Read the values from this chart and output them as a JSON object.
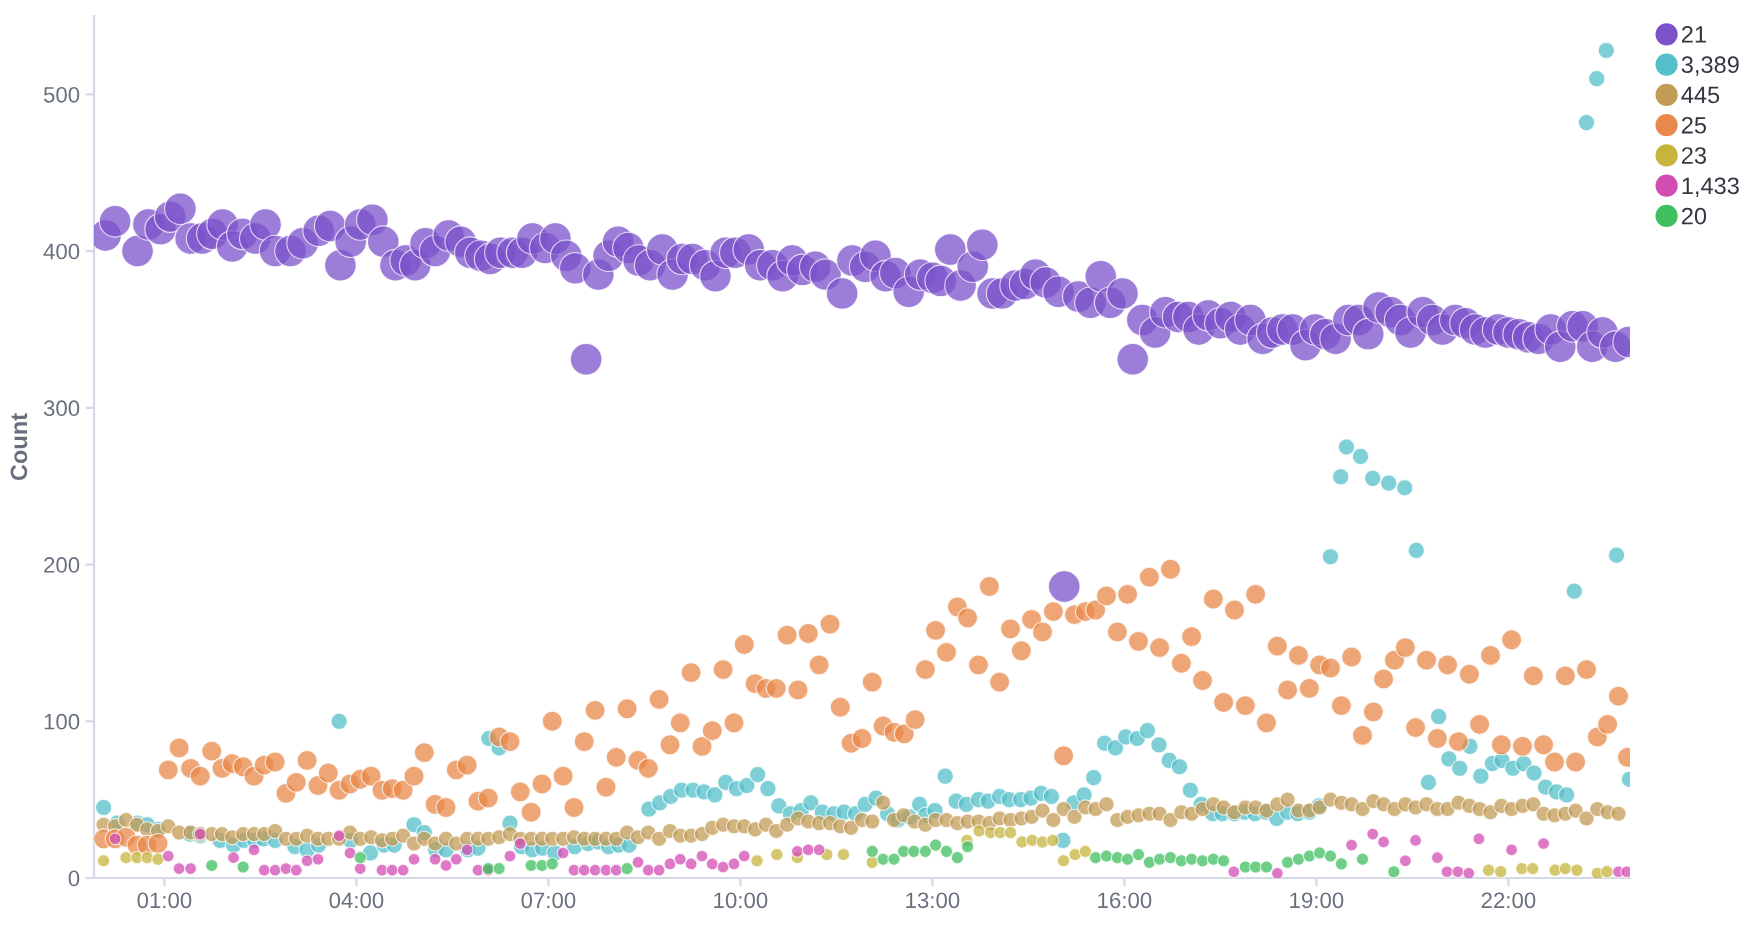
{
  "chart_data": {
    "type": "scatter",
    "ylabel": "Count",
    "marker": "circle",
    "grid": false,
    "legend": "right",
    "xlim": [
      -0.1,
      23.9
    ],
    "ylim": [
      0,
      550
    ],
    "xticks": [
      {
        "value": 1,
        "label": "01:00"
      },
      {
        "value": 4,
        "label": "04:00"
      },
      {
        "value": 7,
        "label": "07:00"
      },
      {
        "value": 10,
        "label": "10:00"
      },
      {
        "value": 13,
        "label": "13:00"
      },
      {
        "value": 16,
        "label": "16:00"
      },
      {
        "value": 19,
        "label": "19:00"
      },
      {
        "value": 22,
        "label": "22:00"
      }
    ],
    "yticks": [
      0,
      100,
      200,
      300,
      400,
      500
    ],
    "series": [
      {
        "name": "21",
        "color": "#7b52c9",
        "x": [
          0.08,
          0.23,
          0.58,
          0.75,
          0.94,
          1.09,
          1.25,
          1.41,
          1.59,
          1.75,
          1.91,
          2.06,
          2.22,
          2.42,
          2.58,
          2.73,
          2.97,
          3.16,
          3.41,
          3.59,
          3.75,
          3.91,
          4.06,
          4.25,
          4.42,
          4.61,
          4.77,
          4.92,
          5.08,
          5.23,
          5.44,
          5.63,
          5.78,
          5.94,
          6.09,
          6.25,
          6.44,
          6.59,
          6.75,
          6.95,
          7.11,
          7.28,
          7.42,
          7.59,
          7.78,
          7.94,
          8.09,
          8.25,
          8.41,
          8.59,
          8.78,
          8.94,
          9.09,
          9.25,
          9.45,
          9.61,
          9.77,
          9.92,
          10.13,
          10.31,
          10.5,
          10.66,
          10.81,
          10.97,
          11.17,
          11.33,
          11.59,
          11.75,
          11.95,
          12.11,
          12.27,
          12.42,
          12.63,
          12.81,
          13.0,
          13.13,
          13.28,
          13.44,
          13.63,
          13.78,
          13.94,
          14.09,
          14.3,
          14.45,
          14.61,
          14.77,
          14.97,
          15.06,
          15.28,
          15.47,
          15.63,
          15.78,
          15.97,
          16.13,
          16.28,
          16.48,
          16.64,
          16.84,
          17.0,
          17.16,
          17.31,
          17.5,
          17.66,
          17.81,
          17.97,
          18.16,
          18.31,
          18.47,
          18.63,
          18.83,
          18.98,
          19.14,
          19.3,
          19.5,
          19.66,
          19.81,
          19.97,
          20.16,
          20.31,
          20.47,
          20.66,
          20.81,
          20.97,
          21.17,
          21.33,
          21.48,
          21.64,
          21.84,
          22.0,
          22.16,
          22.31,
          22.47,
          22.66,
          22.81,
          23.0,
          23.16,
          23.31,
          23.47,
          23.67,
          23.88
        ],
        "values": [
          410,
          419,
          400,
          417,
          414,
          422,
          427,
          408,
          408,
          411,
          417,
          403,
          411,
          408,
          417,
          400,
          400,
          405,
          413,
          416,
          391,
          406,
          417,
          420,
          406,
          391,
          394,
          391,
          405,
          400,
          410,
          406,
          399,
          397,
          395,
          399,
          399,
          399,
          408,
          402,
          408,
          397,
          389,
          331,
          385,
          397,
          406,
          402,
          394,
          391,
          401,
          385,
          395,
          395,
          391,
          384,
          399,
          399,
          401,
          391,
          391,
          384,
          394,
          388,
          390,
          385,
          373,
          394,
          390,
          397,
          384,
          386,
          374,
          385,
          383,
          381,
          401,
          378,
          390,
          404,
          373,
          373,
          378,
          379,
          385,
          380,
          374,
          186,
          371,
          367,
          384,
          367,
          373,
          331,
          356,
          348,
          361,
          358,
          358,
          350,
          359,
          354,
          358,
          350,
          356,
          344,
          348,
          350,
          350,
          340,
          350,
          347,
          344,
          356,
          356,
          347,
          364,
          361,
          356,
          348,
          361,
          356,
          350,
          356,
          354,
          350,
          348,
          350,
          348,
          347,
          345,
          344,
          350,
          339,
          352,
          352,
          339,
          348,
          339,
          342
        ]
      },
      {
        "name": "3,389",
        "color": "#54bfca",
        "x": [
          0.05,
          0.26,
          0.4,
          0.58,
          0.73,
          0.9,
          1.05,
          1.4,
          1.56,
          1.87,
          2.08,
          2.24,
          2.41,
          2.55,
          2.73,
          3.04,
          3.23,
          3.41,
          3.73,
          3.91,
          4.22,
          4.43,
          4.59,
          4.9,
          5.06,
          5.24,
          5.4,
          5.74,
          5.9,
          6.07,
          6.23,
          6.4,
          6.58,
          6.75,
          6.91,
          7.1,
          7.41,
          7.62,
          7.78,
          7.94,
          8.1,
          8.26,
          8.57,
          8.74,
          8.91,
          9.08,
          9.26,
          9.43,
          9.6,
          9.77,
          9.94,
          10.1,
          10.27,
          10.43,
          10.6,
          10.78,
          10.95,
          11.1,
          11.28,
          11.46,
          11.62,
          11.8,
          11.95,
          12.12,
          12.3,
          12.46,
          12.64,
          12.8,
          12.89,
          13.04,
          13.2,
          13.37,
          13.53,
          13.72,
          13.87,
          14.05,
          14.2,
          14.38,
          14.54,
          14.7,
          14.86,
          15.04,
          15.21,
          15.37,
          15.52,
          15.69,
          15.86,
          16.02,
          16.2,
          16.36,
          16.54,
          16.7,
          16.86,
          17.03,
          17.2,
          17.38,
          17.53,
          17.72,
          17.88,
          18.04,
          18.21,
          18.38,
          18.55,
          18.71,
          18.89,
          19.04,
          19.22,
          19.38,
          19.47,
          19.69,
          19.88,
          20.13,
          20.38,
          20.56,
          20.75,
          20.91,
          21.07,
          21.24,
          21.4,
          21.57,
          21.75,
          21.9,
          22.07,
          22.24,
          22.4,
          22.58,
          22.75,
          22.91,
          23.03,
          23.22,
          23.38,
          23.53,
          23.69,
          23.89
        ],
        "values": [
          45,
          35,
          null,
          35,
          34,
          31,
          null,
          28,
          27,
          24,
          21,
          24,
          24,
          25,
          24,
          20,
          18,
          21,
          100,
          24,
          16,
          21,
          21,
          34,
          29,
          18,
          18,
          18,
          19,
          89,
          83,
          35,
          20,
          18,
          19,
          16,
          20,
          22,
          23,
          20,
          21,
          21,
          44,
          48,
          52,
          56,
          56,
          55,
          53,
          61,
          57,
          59,
          66,
          57,
          46,
          41,
          43,
          48,
          42,
          41,
          42,
          41,
          47,
          51,
          41,
          37,
          39,
          47,
          40,
          43,
          65,
          49,
          47,
          50,
          49,
          52,
          50,
          50,
          51,
          54,
          52,
          24,
          48,
          53,
          64,
          86,
          83,
          90,
          89,
          94,
          85,
          75,
          71,
          56,
          47,
          41,
          41,
          41,
          42,
          41,
          42,
          38,
          42,
          41,
          42,
          46,
          205,
          256,
          275,
          269,
          255,
          252,
          249,
          209,
          61,
          103,
          76,
          70,
          84,
          65,
          73,
          75,
          70,
          73,
          67,
          58,
          55,
          53,
          183,
          482,
          510,
          528,
          206,
          63
        ]
      },
      {
        "name": "445",
        "color": "#c29b55",
        "x": [
          0.05,
          0.23,
          0.4,
          0.57,
          0.73,
          0.9,
          1.06,
          1.23,
          1.41,
          1.56,
          1.74,
          1.9,
          2.06,
          2.23,
          2.4,
          2.56,
          2.73,
          2.9,
          3.06,
          3.23,
          3.4,
          3.56,
          3.73,
          3.9,
          4.06,
          4.23,
          4.4,
          4.56,
          4.73,
          4.9,
          5.06,
          5.23,
          5.4,
          5.56,
          5.73,
          5.9,
          6.06,
          6.23,
          6.4,
          6.56,
          6.73,
          6.9,
          7.06,
          7.23,
          7.4,
          7.56,
          7.73,
          7.9,
          8.06,
          8.23,
          8.4,
          8.56,
          8.73,
          8.9,
          9.06,
          9.23,
          9.4,
          9.56,
          9.73,
          9.9,
          10.06,
          10.23,
          10.4,
          10.56,
          10.73,
          10.9,
          11.06,
          11.23,
          11.4,
          11.56,
          11.73,
          11.9,
          12.06,
          12.23,
          12.4,
          12.55,
          12.72,
          12.89,
          13.05,
          13.22,
          13.39,
          13.55,
          13.72,
          13.89,
          14.05,
          14.22,
          14.39,
          14.55,
          14.72,
          14.89,
          15.05,
          15.22,
          15.39,
          15.55,
          15.72,
          15.89,
          16.05,
          16.22,
          16.39,
          16.55,
          16.72,
          16.89,
          17.05,
          17.22,
          17.39,
          17.55,
          17.72,
          17.89,
          18.05,
          18.22,
          18.39,
          18.55,
          18.72,
          18.89,
          19.05,
          19.22,
          19.39,
          19.55,
          19.72,
          19.89,
          20.05,
          20.22,
          20.39,
          20.55,
          20.72,
          20.89,
          21.05,
          21.22,
          21.39,
          21.55,
          21.72,
          21.89,
          22.05,
          22.22,
          22.39,
          22.55,
          22.72,
          22.89,
          23.05,
          23.22,
          23.39,
          23.55,
          23.72
        ],
        "values": [
          34,
          33,
          37,
          34,
          31,
          30,
          33,
          29,
          29,
          28,
          28,
          28,
          26,
          28,
          28,
          28,
          30,
          25,
          25,
          27,
          25,
          25,
          25,
          29,
          25,
          26,
          24,
          25,
          27,
          22,
          25,
          22,
          25,
          22,
          25,
          25,
          25,
          26,
          28,
          25,
          25,
          25,
          25,
          25,
          26,
          25,
          25,
          25,
          25,
          29,
          26,
          29,
          25,
          30,
          27,
          27,
          28,
          32,
          34,
          33,
          33,
          31,
          34,
          30,
          34,
          38,
          36,
          35,
          35,
          33,
          32,
          37,
          36,
          48,
          37,
          40,
          36,
          34,
          37,
          37,
          35,
          36,
          36,
          35,
          38,
          37,
          38,
          39,
          43,
          37,
          44,
          39,
          45,
          44,
          47,
          37,
          39,
          40,
          41,
          41,
          37,
          42,
          41,
          44,
          47,
          45,
          42,
          45,
          45,
          43,
          47,
          50,
          43,
          43,
          45,
          50,
          48,
          47,
          44,
          49,
          47,
          44,
          47,
          45,
          47,
          44,
          44,
          48,
          46,
          44,
          42,
          46,
          44,
          46,
          47,
          41,
          40,
          41,
          43,
          38,
          44,
          42,
          41
        ]
      },
      {
        "name": "25",
        "color": "#e8884a",
        "x": [
          0.05,
          0.23,
          0.4,
          0.57,
          0.73,
          0.9,
          1.06,
          1.23,
          1.41,
          1.56,
          1.74,
          1.9,
          2.06,
          2.23,
          2.4,
          2.56,
          2.73,
          2.9,
          3.06,
          3.23,
          3.4,
          3.56,
          3.73,
          3.9,
          4.06,
          4.23,
          4.4,
          4.56,
          4.73,
          4.9,
          5.06,
          5.23,
          5.4,
          5.56,
          5.73,
          5.9,
          6.06,
          6.23,
          6.4,
          6.56,
          6.73,
          6.9,
          7.06,
          7.23,
          7.4,
          7.56,
          7.73,
          7.9,
          8.06,
          8.23,
          8.4,
          8.56,
          8.73,
          8.9,
          9.06,
          9.23,
          9.4,
          9.56,
          9.73,
          9.9,
          10.06,
          10.23,
          10.4,
          10.56,
          10.73,
          10.9,
          11.06,
          11.23,
          11.4,
          11.56,
          11.73,
          11.9,
          12.06,
          12.23,
          12.4,
          12.56,
          12.73,
          12.89,
          13.05,
          13.22,
          13.39,
          13.55,
          13.72,
          13.89,
          14.05,
          14.22,
          14.39,
          14.55,
          14.72,
          14.89,
          15.05,
          15.22,
          15.39,
          15.55,
          15.72,
          15.89,
          16.05,
          16.22,
          16.39,
          16.55,
          16.72,
          16.89,
          17.05,
          17.22,
          17.39,
          17.55,
          17.72,
          17.89,
          18.05,
          18.22,
          18.39,
          18.55,
          18.72,
          18.89,
          19.05,
          19.22,
          19.39,
          19.55,
          19.72,
          19.89,
          20.05,
          20.22,
          20.39,
          20.55,
          20.72,
          20.89,
          21.05,
          21.22,
          21.39,
          21.55,
          21.72,
          21.89,
          22.05,
          22.22,
          22.39,
          22.55,
          22.72,
          22.89,
          23.05,
          23.22,
          23.39,
          23.55,
          23.72,
          23.86
        ],
        "values": [
          25,
          25,
          26,
          21,
          21,
          22,
          69,
          83,
          70,
          65,
          81,
          70,
          73,
          71,
          65,
          72,
          74,
          54,
          61,
          75,
          59,
          67,
          56,
          60,
          63,
          65,
          56,
          57,
          56,
          65,
          80,
          47,
          45,
          69,
          72,
          49,
          51,
          90,
          87,
          55,
          42,
          60,
          100,
          65,
          45,
          87,
          107,
          58,
          77,
          108,
          75,
          70,
          114,
          85,
          99,
          131,
          84,
          94,
          133,
          99,
          149,
          124,
          121,
          121,
          155,
          120,
          156,
          136,
          162,
          109,
          86,
          89,
          125,
          97,
          93,
          92,
          101,
          133,
          158,
          144,
          173,
          166,
          136,
          186,
          125,
          159,
          145,
          165,
          157,
          170,
          78,
          168,
          170,
          171,
          180,
          157,
          181,
          151,
          192,
          147,
          197,
          137,
          154,
          126,
          178,
          112,
          171,
          110,
          181,
          99,
          148,
          120,
          142,
          121,
          136,
          134,
          110,
          141,
          91,
          106,
          127,
          139,
          147,
          96,
          139,
          89,
          136,
          87,
          130,
          98,
          142,
          85,
          152,
          84,
          129,
          85,
          74,
          129,
          74,
          133,
          90,
          98,
          116,
          77
        ]
      },
      {
        "name": "23",
        "color": "#c7b43c",
        "x": [
          0.05,
          0.4,
          0.57,
          0.73,
          0.9,
          10.26,
          10.57,
          10.89,
          11.35,
          11.61,
          12.06,
          12.55,
          13.54,
          13.73,
          13.91,
          14.06,
          14.22,
          14.4,
          14.56,
          14.72,
          14.88,
          15.05,
          15.23,
          15.39,
          21.69,
          21.88,
          22.21,
          22.38,
          22.73,
          22.89,
          23.07,
          23.39,
          23.54
        ],
        "values": [
          11,
          13,
          13,
          13,
          12,
          11,
          15,
          13,
          15,
          15,
          10,
          null,
          24,
          30,
          29,
          29,
          29,
          23,
          24,
          23,
          24,
          11,
          15,
          17,
          5,
          4,
          6,
          6,
          5,
          6,
          5,
          3,
          4
        ]
      },
      {
        "name": "1,433",
        "color": "#d34cb4",
        "x": [
          0.23,
          1.06,
          1.23,
          1.41,
          1.56,
          2.08,
          2.4,
          2.56,
          2.73,
          2.9,
          3.06,
          3.23,
          3.4,
          3.73,
          3.9,
          4.06,
          4.4,
          4.56,
          4.73,
          4.9,
          5.23,
          5.4,
          5.56,
          5.73,
          5.9,
          6.06,
          6.4,
          6.56,
          7.23,
          7.4,
          7.56,
          7.73,
          7.9,
          8.06,
          8.4,
          8.56,
          8.73,
          8.9,
          9.06,
          9.23,
          9.4,
          9.56,
          9.73,
          9.9,
          10.06,
          10.89,
          11.06,
          11.23,
          17.71,
          18.39,
          19.55,
          19.88,
          20.05,
          20.39,
          20.55,
          20.89,
          21.04,
          21.21,
          21.38,
          21.54,
          22.05,
          22.55,
          23.72,
          23.85
        ],
        "values": [
          25,
          14,
          6,
          6,
          28,
          13,
          18,
          5,
          5,
          6,
          5,
          11,
          12,
          27,
          16,
          6,
          5,
          5,
          5,
          12,
          12,
          8,
          12,
          18,
          5,
          5,
          14,
          22,
          16,
          5,
          5,
          5,
          5,
          5,
          10,
          5,
          5,
          9,
          12,
          9,
          14,
          9,
          7,
          9,
          14,
          17,
          18,
          18,
          4,
          3,
          21,
          28,
          23,
          11,
          24,
          13,
          4,
          4,
          3,
          25,
          18,
          22,
          4,
          4
        ]
      },
      {
        "name": "20",
        "color": "#3fbf5f",
        "x": [
          1.74,
          2.23,
          4.06,
          6.06,
          6.23,
          6.73,
          6.9,
          7.06,
          8.23,
          12.06,
          12.23,
          12.4,
          12.55,
          12.71,
          12.89,
          13.05,
          13.22,
          13.39,
          13.55,
          15.55,
          15.72,
          15.89,
          16.05,
          16.22,
          16.39,
          16.55,
          16.72,
          16.89,
          17.05,
          17.22,
          17.39,
          17.55,
          17.89,
          18.05,
          18.22,
          18.55,
          18.72,
          18.89,
          19.05,
          19.22,
          19.39,
          19.72,
          20.21
        ],
        "values": [
          8,
          7,
          13,
          6,
          6,
          8,
          8,
          9,
          6,
          17,
          12,
          12,
          17,
          17,
          17,
          21,
          17,
          13,
          20,
          13,
          14,
          13,
          12,
          15,
          10,
          12,
          13,
          11,
          12,
          11,
          12,
          11,
          7,
          7,
          7,
          10,
          12,
          14,
          16,
          14,
          9,
          12,
          4
        ]
      }
    ]
  }
}
